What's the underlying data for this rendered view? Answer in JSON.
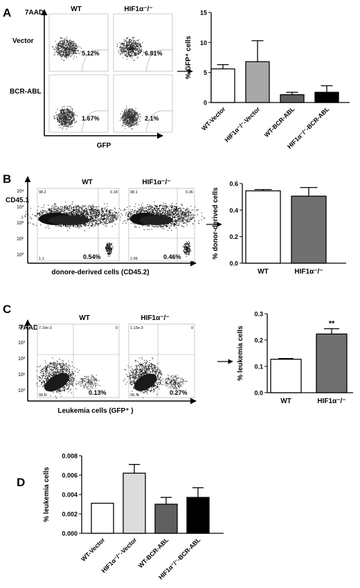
{
  "panels": {
    "A": {
      "letter": "A",
      "col_labels": [
        "WT",
        "HIF1α-/-"
      ],
      "row_labels": [
        "Vector",
        "BCR-ABL"
      ],
      "yaxis": "7AAD",
      "xaxis": "GFP",
      "percents": [
        "5.12%",
        "6.81%",
        "1.67%",
        "2.1%"
      ]
    },
    "B": {
      "letter": "B",
      "col_labels": [
        "WT",
        "HIF1α-/-"
      ],
      "yaxis": "CD45.1",
      "xaxis": "donore-derived cells (CD45.2)",
      "ticks": [
        "10⁰",
        "10¹",
        "10²",
        "10³",
        "10⁴"
      ],
      "quadrants": [
        {
          "ul": "98.2",
          "ur": "0.18",
          "ll": "1.1",
          "lr": "0.54%"
        },
        {
          "ul": "98.1",
          "ur": "0.36",
          "ll": "1.09",
          "lr": "0.46%"
        }
      ]
    },
    "C": {
      "letter": "C",
      "col_labels": [
        "WT",
        "HIF1α-/-"
      ],
      "yaxis": "7AAD",
      "xaxis": "Leukemia cells (GFP⁺ )",
      "ticks": [
        "10⁰",
        "10¹",
        "10²",
        "10³",
        "10⁴"
      ],
      "quadrants": [
        {
          "ul": "7.19e-3",
          "ur": "0",
          "ll": "99.9",
          "lr": "0.13%"
        },
        {
          "ul": "1.13e-3",
          "ur": "0",
          "ll": "99.7",
          "lr": "0.27%"
        }
      ]
    },
    "D": {
      "letter": "D"
    }
  },
  "chart_data": [
    {
      "type": "bar",
      "panel": "A",
      "categories": [
        "WT-Vector",
        "HIF1α-/--Vector",
        "WT-BCR-ABL",
        "HIF1α-/--BCR-ABL"
      ],
      "values": [
        5.6,
        6.8,
        1.3,
        1.7
      ],
      "errors": [
        0.7,
        3.5,
        0.4,
        1.1
      ],
      "fills": [
        "#ffffff",
        "#a8a8a8",
        "#606060",
        "#000000"
      ],
      "ylabel": "% GFP⁺ cells",
      "ylim": [
        0,
        15
      ],
      "yticks": [
        0,
        5,
        10,
        15
      ],
      "ytick_labels": [
        "0",
        "5",
        "10",
        "15"
      ]
    },
    {
      "type": "bar",
      "panel": "B",
      "categories": [
        "WT",
        "HIF1α-/-"
      ],
      "values": [
        0.545,
        0.505
      ],
      "errors": [
        0.01,
        0.065
      ],
      "fills": [
        "#ffffff",
        "#707070"
      ],
      "ylabel": "% donor-derived cells",
      "ylim": [
        0,
        0.6
      ],
      "yticks": [
        0,
        0.2,
        0.4,
        0.6
      ],
      "ytick_labels": [
        "0.0",
        "0.2",
        "0.4",
        "0.6"
      ]
    },
    {
      "type": "bar",
      "panel": "C",
      "categories": [
        "WT",
        "HIF1α-/-"
      ],
      "values": [
        0.127,
        0.223
      ],
      "errors": [
        0.003,
        0.02
      ],
      "fills": [
        "#ffffff",
        "#707070"
      ],
      "ylabel": "% leukemia cells",
      "ylim": [
        0,
        0.3
      ],
      "yticks": [
        0,
        0.1,
        0.2,
        0.3
      ],
      "ytick_labels": [
        "0.0",
        "0.1",
        "0.2",
        "0.3"
      ],
      "annotation": "**"
    },
    {
      "type": "bar",
      "panel": "D",
      "categories": [
        "WT-Vector",
        "HIF1α-/--Vector",
        "WT-BCR-ABL",
        "HIF1α-/--BCR-ABL"
      ],
      "values": [
        0.0031,
        0.0062,
        0.003,
        0.0037
      ],
      "errors": [
        0,
        0.0009,
        0.0007,
        0.001
      ],
      "fills": [
        "#ffffff",
        "#dcdcdc",
        "#606060",
        "#000000"
      ],
      "ylabel": "% leukemia cells",
      "ylim": [
        0,
        0.008
      ],
      "yticks": [
        0,
        0.002,
        0.004,
        0.006,
        0.008
      ],
      "ytick_labels": [
        "0.000",
        "0.002",
        "0.004",
        "0.006",
        "0.008"
      ]
    }
  ]
}
